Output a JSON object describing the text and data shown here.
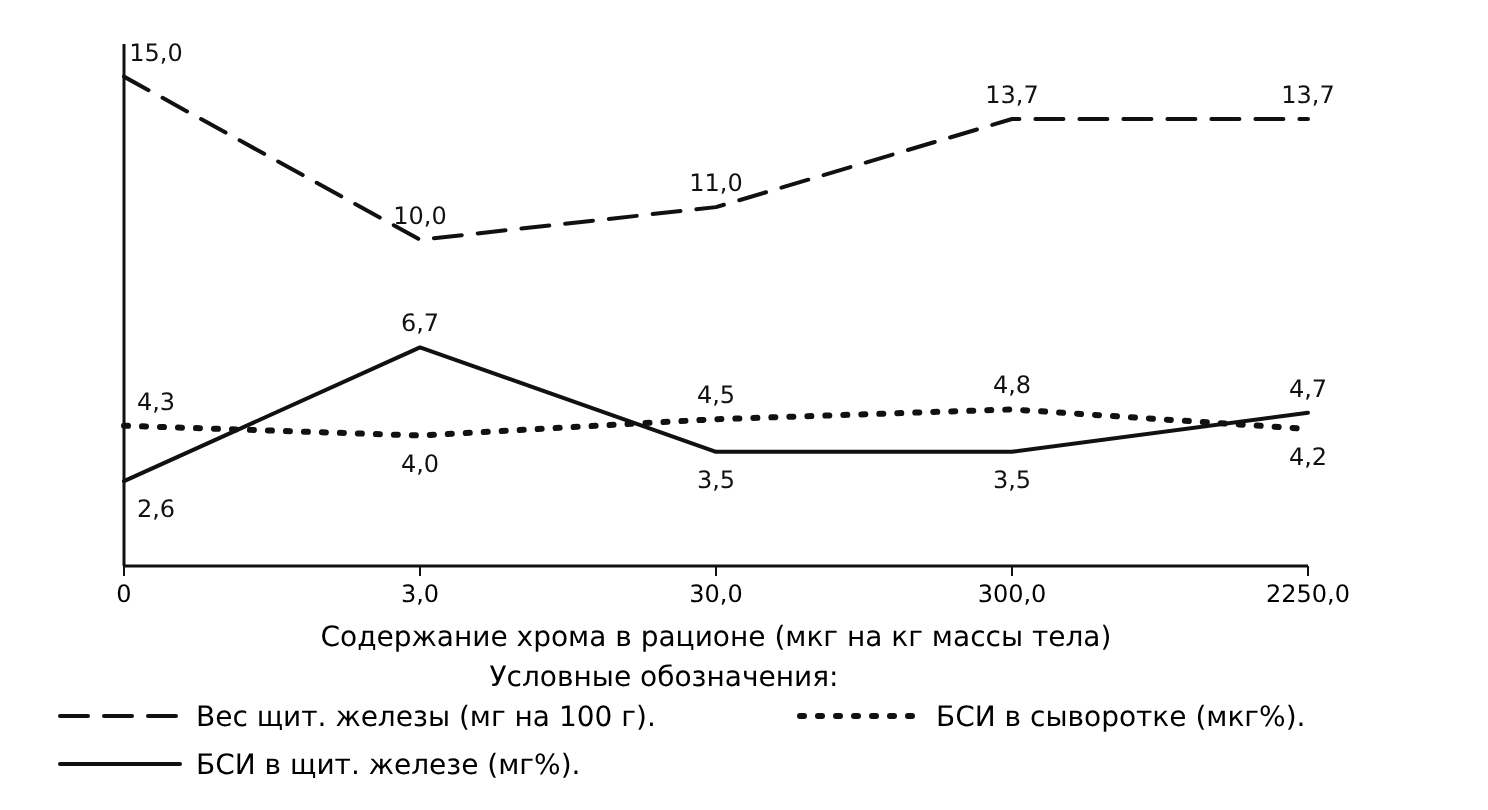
{
  "chart_data": {
    "type": "line",
    "xlabel": "Содержание хрома в рационе (мкг на кг массы тела)",
    "legend_title": "Условные обозначения:",
    "categories": [
      "0",
      "3,0",
      "30,0",
      "300,0",
      "2250,0"
    ],
    "ylim": [
      0,
      16
    ],
    "tick_labels": "x",
    "legend": "bottom",
    "marker": "none",
    "series": [
      {
        "name": "Вес щит. железы (мг на 100 г).",
        "color": "#111111",
        "line_style": "dashed",
        "values": [
          15.0,
          10.0,
          11.0,
          13.7,
          13.7
        ],
        "value_labels": [
          "15,0",
          "10,0",
          "11,0",
          "13,7",
          "13,7"
        ]
      },
      {
        "name": "БСИ в сыворотке (мкг%).",
        "color": "#111111",
        "line_style": "dotted",
        "values": [
          4.3,
          4.0,
          4.5,
          4.8,
          4.2
        ],
        "value_labels": [
          "4,3",
          "4,0",
          "4,5",
          "4,8",
          "4,2"
        ]
      },
      {
        "name": "БСИ в щит. железе (мг%).",
        "color": "#111111",
        "line_style": "solid",
        "values": [
          2.6,
          6.7,
          3.5,
          3.5,
          4.7
        ],
        "value_labels": [
          "2,6",
          "6,7",
          "3,5",
          "3,5",
          "4,7"
        ]
      }
    ]
  }
}
